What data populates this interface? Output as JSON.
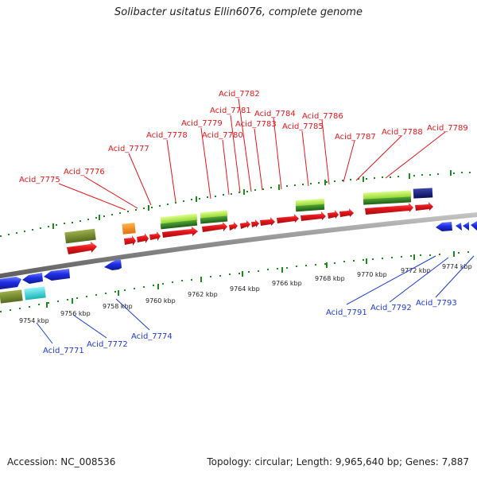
{
  "title": "Solibacter usitatus Ellin6076, complete genome",
  "footer": {
    "accession": "Accession: NC_008536",
    "topology": "Topology: circular; Length: 9,965,640 bp; Genes: 7,887"
  },
  "colors": {
    "forward_gene": "#e8161b",
    "reverse_gene": "#1f2ee6",
    "ruler": "#8a8a8a",
    "tick": "#1f8a1f",
    "light_green": "#a8e43c",
    "dark_green": "#2f7d1e",
    "olive": "#6e8a2a",
    "orange": "#f08a1a",
    "navy": "#141a78",
    "cyan": "#2ad4d8"
  },
  "kbp_labels": [
    "9754 kbp",
    "9756 kbp",
    "9758 kbp",
    "9760 kbp",
    "9762 kbp",
    "9764 kbp",
    "9766 kbp",
    "9768 kbp",
    "9770 kbp",
    "9772 kbp",
    "9774 kbp"
  ],
  "forward_labels": [
    "Acid_7775",
    "Acid_7776",
    "Acid_7777",
    "Acid_7778",
    "Acid_7779",
    "Acid_7780",
    "Acid_7781",
    "Acid_7782",
    "Acid_7783",
    "Acid_7784",
    "Acid_7785",
    "Acid_7786",
    "Acid_7787",
    "Acid_7788",
    "Acid_7789"
  ],
  "reverse_labels": [
    "Acid_7771",
    "Acid_7772",
    "Acid_7774",
    "Acid_7791",
    "Acid_7792",
    "Acid_7793"
  ]
}
